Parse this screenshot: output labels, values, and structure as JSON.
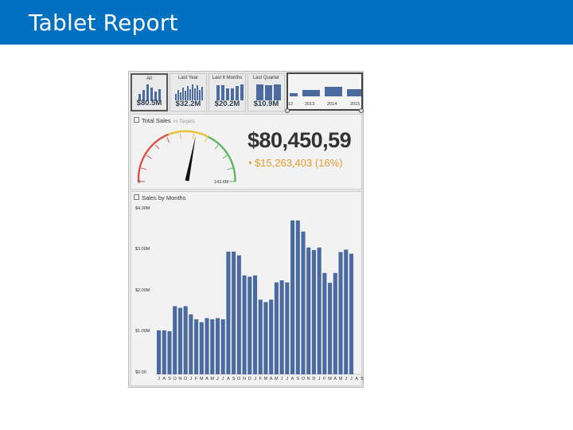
{
  "header": {
    "title": "Tablet Report",
    "background": "#0070c0"
  },
  "filters": [
    {
      "label": "All",
      "value": "$80.5M",
      "selected": true
    },
    {
      "label": "Last Year",
      "value": "$32.2M",
      "selected": false
    },
    {
      "label": "Last 6 Months",
      "value": "$20.2M",
      "selected": false
    },
    {
      "label": "Last Quarter",
      "value": "$10.9M",
      "selected": false
    }
  ],
  "timeline": {
    "years": [
      "12",
      "2013",
      "2014",
      "2015"
    ]
  },
  "total_sales": {
    "title": "Total Sales",
    "subtitle": "vs Targets",
    "amount": "$80,450,59",
    "delta": "$15,263,403 (16%)",
    "gauge_min": "0",
    "gauge_max": "143.6M",
    "gauge_fraction": 0.56
  },
  "sales_by_months": {
    "title": "Sales by Months",
    "y_ticks": [
      "$4.00M",
      "$3.00M",
      "$2.00M",
      "$1.00M",
      "$0.00"
    ]
  },
  "chart_data": {
    "type": "bar",
    "title": "Sales by Months",
    "ylim": [
      0,
      4.0
    ],
    "y_unit": "$M",
    "categories": [
      "J",
      "A",
      "S",
      "O",
      "N",
      "D",
      "J",
      "F",
      "M",
      "A",
      "M",
      "J",
      "J",
      "A",
      "S",
      "O",
      "N",
      "D",
      "J",
      "F",
      "M",
      "A",
      "M",
      "J",
      "J",
      "A",
      "S",
      "O",
      "N",
      "D",
      "J",
      "F",
      "M",
      "A",
      "M",
      "J",
      "J",
      "A",
      "S"
    ],
    "values": [
      1.07,
      1.07,
      1.05,
      1.66,
      1.62,
      1.66,
      1.46,
      1.34,
      1.27,
      1.37,
      1.34,
      1.37,
      1.34,
      2.99,
      2.99,
      2.9,
      2.41,
      2.38,
      2.41,
      1.82,
      1.76,
      1.82,
      2.24,
      2.29,
      2.24,
      3.75,
      3.75,
      3.48,
      3.09,
      3.03,
      3.09,
      2.47,
      2.23,
      2.47,
      2.98,
      3.04,
      2.94,
      0,
      0
    ],
    "color": "#4a6aa0"
  }
}
